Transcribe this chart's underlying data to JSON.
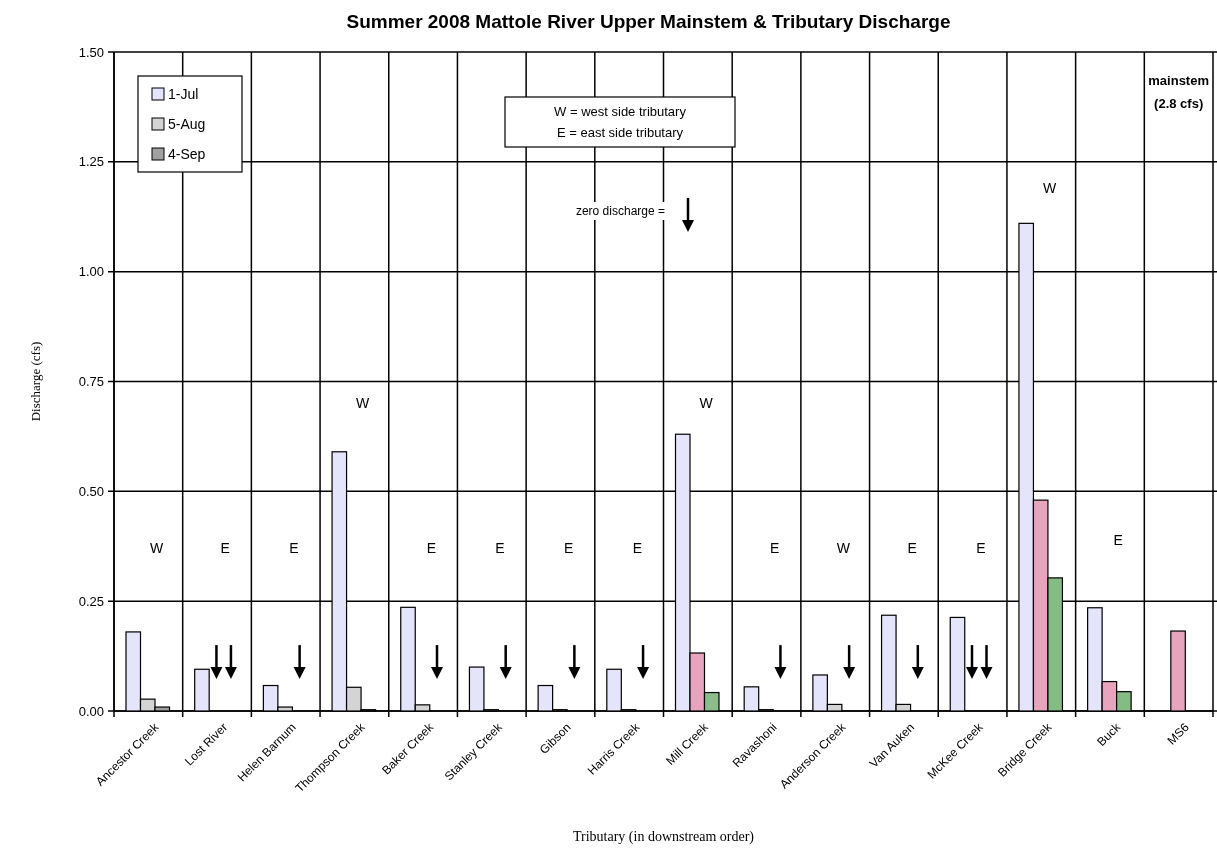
{
  "chart_data": {
    "type": "bar",
    "title": "Summer 2008 Mattole River Upper Mainstem & Tributary Discharge",
    "xlabel": "Tributary (in downstream order)",
    "ylabel": "Discharge (cfs)",
    "categories": [
      "Ancestor Creek",
      "Lost River",
      "Helen Barnum",
      "Thompson Creek",
      "Baker Creek",
      "Stanley Creek",
      "Gibson",
      "Harris Creek",
      "Mill Creek",
      "Ravashoni",
      "Anderson Creek",
      "Van Auken",
      "McKee Creek",
      "Bridge Creek",
      "Buck",
      "MS6"
    ],
    "series": [
      {
        "name": "1-Jul",
        "color": "#e4e4fa",
        "values": [
          0.18,
          0.095,
          0.058,
          0.59,
          0.236,
          0.1,
          0.058,
          0.095,
          0.63,
          0.055,
          0.082,
          0.218,
          0.213,
          1.11,
          0.235,
          null
        ]
      },
      {
        "name": "5-Aug",
        "color": "#d4d4d4",
        "colors": [
          "#d4d4d4",
          null,
          "#d4d4d4",
          "#d4d4d4",
          "#d4d4d4",
          "#d4d4d4",
          "#d4d4d4",
          "#d4d4d4",
          "#e8a4bc",
          "#d4d4d4",
          "#d4d4d4",
          "#d4d4d4",
          null,
          "#e8a4bc",
          "#e8a4bc",
          "#e8a4bc"
        ],
        "values": [
          0.027,
          0,
          0.009,
          0.054,
          0.014,
          0.003,
          0.003,
          0.003,
          0.132,
          0.003,
          0.015,
          0.015,
          0,
          0.48,
          0.067,
          0.182
        ]
      },
      {
        "name": "4-Sep",
        "color": "#a0a0a0",
        "colors": [
          "#a0a0a0",
          null,
          null,
          "#a0a0a0",
          null,
          null,
          null,
          null,
          "#8cbc8c",
          null,
          null,
          null,
          null,
          "#84bc84",
          "#84bc84",
          null
        ],
        "values": [
          0.009,
          0,
          0,
          0.003,
          0,
          0,
          0,
          0,
          0.042,
          0,
          0,
          0,
          0,
          0.303,
          0.044,
          null
        ]
      }
    ],
    "ylim": [
      0,
      1.5
    ],
    "yticks": [
      {
        "value": 0,
        "label": "0.00"
      },
      {
        "value": 0.25,
        "label": "0.25"
      },
      {
        "value": 0.5,
        "label": "0.50"
      },
      {
        "value": 0.75,
        "label": "0.75"
      },
      {
        "value": 1,
        "label": "1.00"
      },
      {
        "value": 1.25,
        "label": "1.25"
      },
      {
        "value": 1.5,
        "label": "1.50"
      }
    ],
    "grid": true,
    "legend": "top left",
    "annotations": [
      "W",
      "E",
      "E",
      "W",
      "E",
      "E",
      "E",
      "E",
      "W",
      "E",
      "W",
      "E",
      "E",
      "W",
      "E",
      "W = west side tributary",
      "E = east side tributary",
      "zero discharge =",
      "mainstem",
      "(2.8 cfs)"
    ]
  }
}
